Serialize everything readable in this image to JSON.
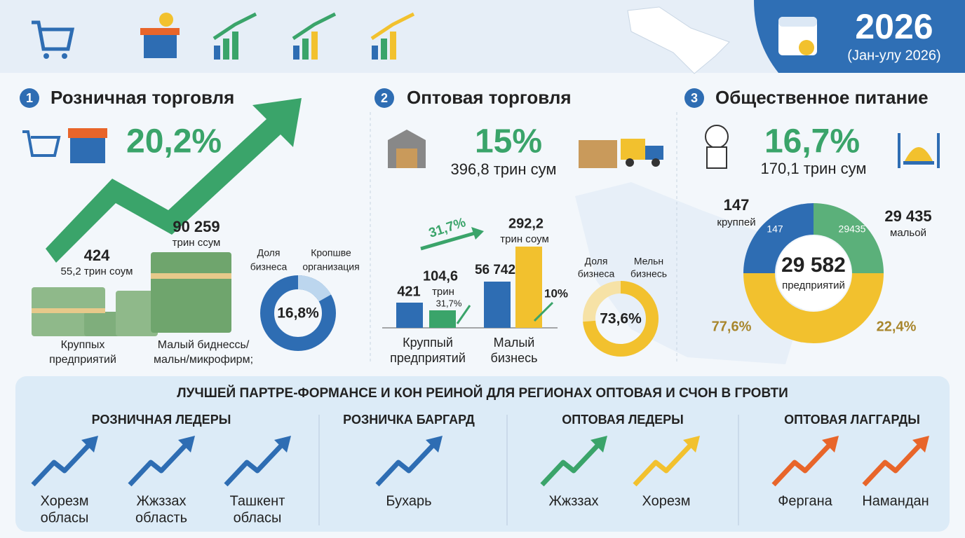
{
  "header": {
    "year": "2026",
    "period": "(Јан-улу 2026)"
  },
  "sections": [
    {
      "number": "1",
      "title": "Розничная торговля",
      "growth": "20,2%",
      "large": {
        "value": "424",
        "unit": "55,2 трин соум",
        "label_lines": [
          "Круппых",
          "предприятий"
        ]
      },
      "small": {
        "value": "90 259",
        "unit": "трин ссум",
        "label_lines": [
          "Малый биднессь/",
          "мальн/микрофирм;"
        ]
      },
      "donut": {
        "left_lines": [
          "Доля",
          "бизнеса"
        ],
        "right_lines": [
          "Кропшве",
          "организация"
        ],
        "share": 16.8,
        "share_label": "16,8%",
        "color": "#bcd6ee",
        "base_color": "#2e6db3"
      }
    },
    {
      "number": "2",
      "title": "Оптовая торговля",
      "growth": "15%",
      "amount": "396,8 трин сум",
      "bars": {
        "trend_label": "31,7%",
        "labels": [
          "421",
          "104,6",
          "трин",
          "31,7%",
          "56 742",
          "292,2",
          "трин соум",
          "10%"
        ],
        "categories": [
          [
            "Круппый",
            "предприятий"
          ],
          [
            "Малый",
            "бизнесь"
          ]
        ]
      },
      "donut": {
        "left_lines": [
          "Доля",
          "бизнеса"
        ],
        "right_lines": [
          "Мельн",
          "бизнесь"
        ],
        "share": 73.6,
        "share_label": "73,6%",
        "color": "#f2c12e",
        "base_color": "#f6e2a6"
      }
    },
    {
      "number": "3",
      "title": "Общественное питание",
      "growth": "16,7%",
      "amount": "170,1 трин сум",
      "donut": {
        "left_value": "147",
        "left_label": "круппей",
        "right_value": "29 435",
        "right_label": "мальой",
        "inner_left": "147",
        "inner_right": "29435",
        "center_value": "29 582",
        "center_label": "предприятий",
        "bottom_left": "77,6%",
        "bottom_right": "22,4%"
      }
    }
  ],
  "footer": {
    "title": "ЛУЧШЕЙ ПАРТРЕ-ФОРМАНСЕ И КОН РЕИНОЙ ДЛЯ РЕГИОНАХ ОПТОВАЯ И СЧОН В ГРОВТИ",
    "groups": [
      {
        "title": "РОЗНИЧНАЯ ЛЕДЕРЫ",
        "items": [
          [
            "Хорезм",
            "обласы"
          ],
          [
            "Жжззах",
            "область"
          ],
          [
            "Ташкент",
            "обласы"
          ]
        ]
      },
      {
        "title": "РОЗНИЧКА БАРГАРД",
        "items": [
          [
            "Бухарь"
          ]
        ]
      },
      {
        "title": "ОПТОВАЯ ЛЕДЕРЫ",
        "items": [
          [
            "Жжззах"
          ],
          [
            "Хорезм"
          ]
        ]
      },
      {
        "title": "ОПТОВАЯ ЛАГГАРДЫ",
        "items": [
          [
            "Фергана"
          ],
          [
            "Намандан"
          ]
        ]
      }
    ]
  }
}
